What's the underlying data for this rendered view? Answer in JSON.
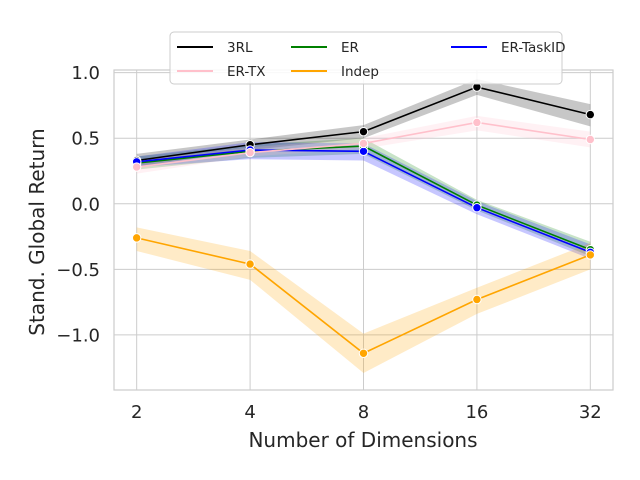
{
  "chart_data": {
    "type": "line",
    "title": "",
    "xlabel": "Number of Dimensions",
    "ylabel": "Stand. Global Return",
    "x": [
      2,
      4,
      8,
      16,
      32
    ],
    "x_tick_labels": [
      "2",
      "4",
      "8",
      "16",
      "32"
    ],
    "x_scale": "log2",
    "y_ticks": [
      -1.0,
      -0.5,
      0.0,
      0.5,
      1.0
    ],
    "y_tick_labels": [
      "−1.0",
      "−0.5",
      "0.0",
      "0.5",
      "1.0"
    ],
    "ylim": [
      -1.42,
      1.02
    ],
    "grid": true,
    "legend": "top-center",
    "series": [
      {
        "name": "3RL",
        "color": "#000000",
        "values": [
          0.33,
          0.45,
          0.55,
          0.89,
          0.68
        ],
        "lower": [
          0.28,
          0.41,
          0.5,
          0.83,
          0.59
        ],
        "upper": [
          0.38,
          0.49,
          0.6,
          0.95,
          0.76
        ]
      },
      {
        "name": "ER",
        "color": "#008000",
        "values": [
          0.31,
          0.4,
          0.44,
          -0.01,
          -0.35
        ],
        "lower": [
          0.26,
          0.35,
          0.38,
          -0.05,
          -0.4
        ],
        "upper": [
          0.36,
          0.45,
          0.5,
          0.03,
          -0.29
        ]
      },
      {
        "name": "ER-TaskID",
        "color": "#0000ff",
        "values": [
          0.32,
          0.41,
          0.4,
          -0.03,
          -0.37
        ],
        "lower": [
          0.28,
          0.34,
          0.33,
          -0.08,
          -0.42
        ],
        "upper": [
          0.36,
          0.47,
          0.46,
          0.02,
          -0.31
        ]
      },
      {
        "name": "ER-TX",
        "color": "#ffc0cb",
        "values": [
          0.28,
          0.39,
          0.46,
          0.62,
          0.49
        ],
        "lower": [
          0.23,
          0.36,
          0.42,
          0.56,
          0.43
        ],
        "upper": [
          0.33,
          0.43,
          0.5,
          0.67,
          0.55
        ]
      },
      {
        "name": "Indep",
        "color": "#ffa500",
        "values": [
          -0.26,
          -0.46,
          -1.14,
          -0.73,
          -0.39
        ],
        "lower": [
          -0.36,
          -0.58,
          -1.29,
          -0.84,
          -0.5
        ],
        "upper": [
          -0.18,
          -0.36,
          -0.99,
          -0.64,
          -0.3
        ]
      }
    ]
  }
}
